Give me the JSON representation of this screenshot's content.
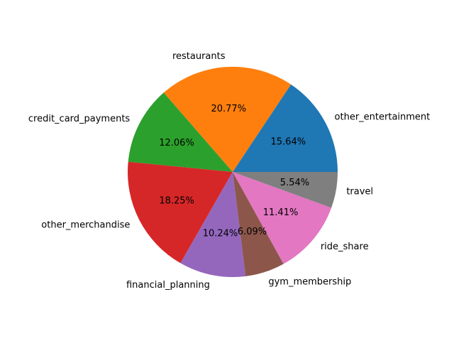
{
  "chart_data": {
    "type": "pie",
    "title": "",
    "start_angle_deg": 0,
    "direction": "counterclockwise",
    "slices": [
      {
        "label": "other_entertainment",
        "value": 15.64,
        "pct_label": "15.64%",
        "color": "#1f77b4"
      },
      {
        "label": "restaurants",
        "value": 20.77,
        "pct_label": "20.77%",
        "color": "#ff7f0e"
      },
      {
        "label": "credit_card_payments",
        "value": 12.06,
        "pct_label": "12.06%",
        "color": "#2ca02c"
      },
      {
        "label": "other_merchandise",
        "value": 18.25,
        "pct_label": "18.25%",
        "color": "#d62728"
      },
      {
        "label": "financial_planning",
        "value": 10.24,
        "pct_label": "10.24%",
        "color": "#9467bd"
      },
      {
        "label": "gym_membership",
        "value": 6.09,
        "pct_label": "6.09%",
        "color": "#8c564b"
      },
      {
        "label": "ride_share",
        "value": 11.41,
        "pct_label": "11.41%",
        "color": "#e377c2"
      },
      {
        "label": "travel",
        "value": 5.54,
        "pct_label": "5.54%",
        "color": "#7f7f7f"
      }
    ]
  }
}
